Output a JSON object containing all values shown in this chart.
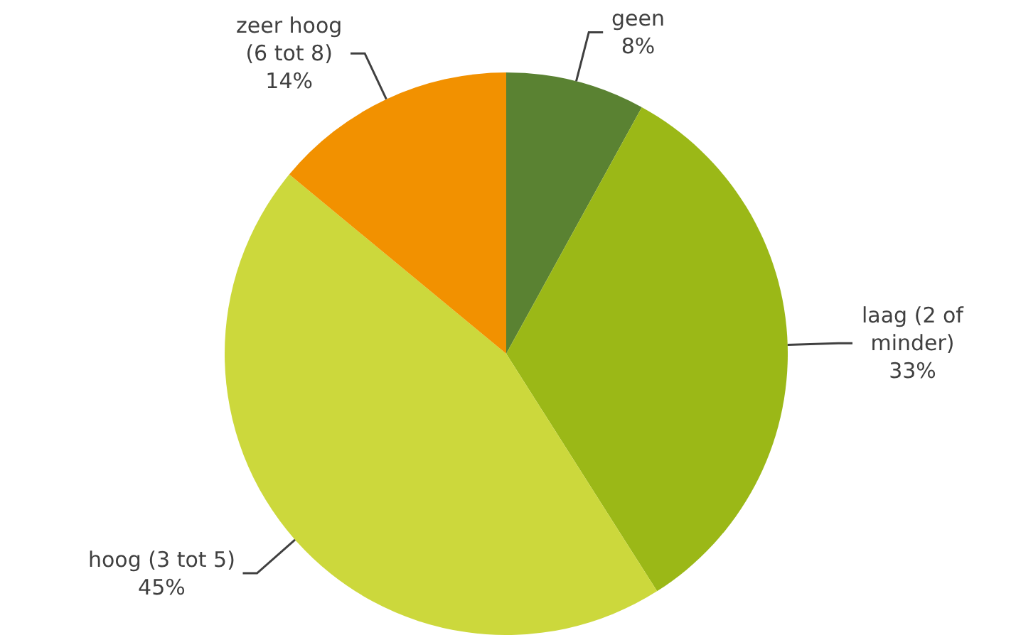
{
  "chart_data": {
    "type": "pie",
    "categories": [
      "geen",
      "laag (2 of minder)",
      "hoog (3 tot 5)",
      "zeer hoog (6 tot 8)"
    ],
    "values": [
      8,
      33,
      45,
      14
    ],
    "value_labels": [
      "8%",
      "33%",
      "45%",
      "14%"
    ],
    "colors": [
      "#5a8232",
      "#9bb817",
      "#ccd83c",
      "#f29100"
    ]
  }
}
